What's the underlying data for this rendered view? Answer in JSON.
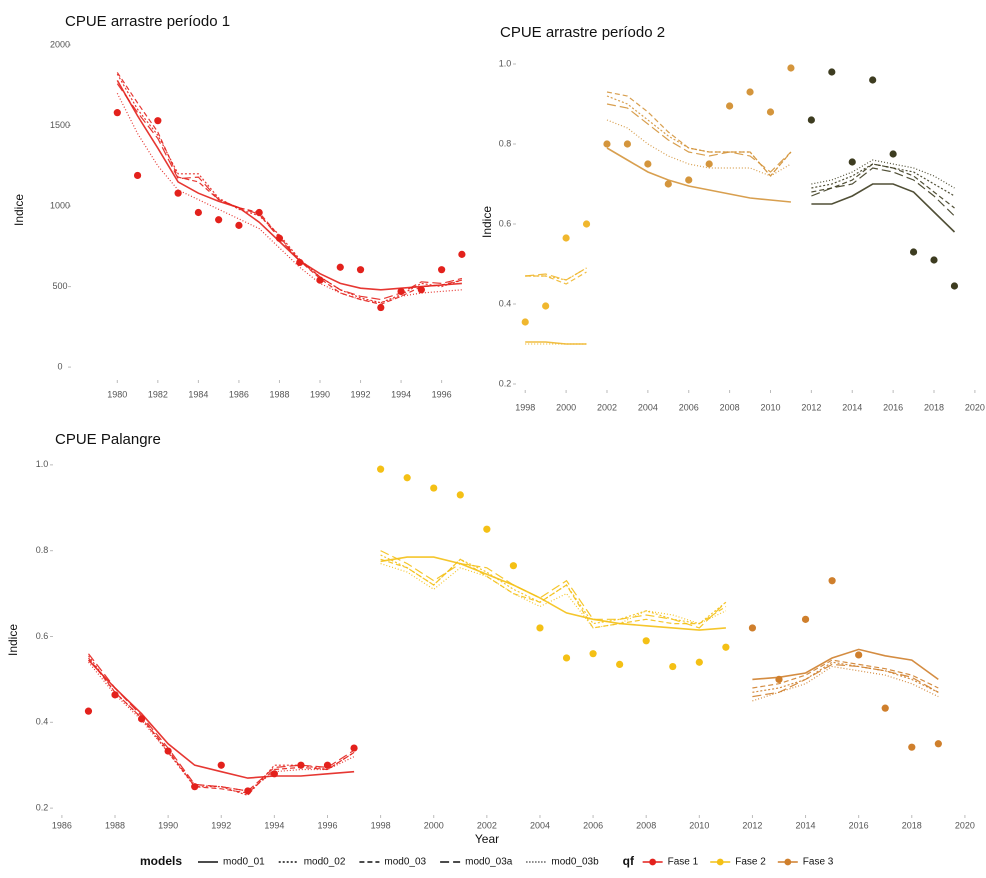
{
  "legend": {
    "models_title": "models",
    "models": [
      {
        "name": "mod0_01",
        "dash": "none"
      },
      {
        "name": "mod0_02",
        "dash": "2,2"
      },
      {
        "name": "mod0_03",
        "dash": "5,3"
      },
      {
        "name": "mod0_03a",
        "dash": "9,4"
      },
      {
        "name": "mod0_03b",
        "dash": "1,2"
      }
    ],
    "qf_title": "qf",
    "phases": [
      {
        "name": "Fase 1",
        "color": "#e3211c"
      },
      {
        "name": "Fase 2",
        "color": "#f4c015"
      },
      {
        "name": "Fase 3",
        "color": "#cf7f2c"
      }
    ]
  },
  "chart_data": [
    {
      "type": "line",
      "title": "CPUE arrastre período 1",
      "y_label": "Indice",
      "xlim": [
        1978.9,
        1997.4
      ],
      "ylim": [
        -80,
        2000
      ],
      "xticks": [
        1980,
        1982,
        1984,
        1986,
        1988,
        1990,
        1992,
        1994,
        1996
      ],
      "yticks": [
        0,
        500,
        1000,
        1500,
        2000
      ],
      "groups": [
        {
          "color": "#e3211c",
          "x": [
            1980,
            1981,
            1982,
            1983,
            1984,
            1985,
            1986,
            1987,
            1988,
            1989,
            1990,
            1991,
            1992,
            1993,
            1994,
            1995,
            1996,
            1997
          ],
          "points": [
            1580,
            1190,
            1530,
            1080,
            960,
            915,
            880,
            960,
            800,
            650,
            540,
            620,
            605,
            370,
            470,
            480,
            605,
            700
          ],
          "models": [
            [
              1780,
              1560,
              1360,
              1150,
              1080,
              1030,
              990,
              900,
              780,
              660,
              580,
              520,
              490,
              480,
              490,
              500,
              510,
              520
            ],
            [
              1820,
              1600,
              1440,
              1200,
              1200,
              1050,
              980,
              940,
              820,
              670,
              560,
              480,
              430,
              400,
              450,
              520,
              500,
              540
            ],
            [
              1830,
              1640,
              1460,
              1180,
              1150,
              1040,
              990,
              960,
              810,
              660,
              550,
              460,
              420,
              390,
              440,
              500,
              510,
              540
            ],
            [
              1760,
              1580,
              1420,
              1170,
              1180,
              1040,
              990,
              950,
              800,
              660,
              560,
              480,
              440,
              420,
              460,
              530,
              520,
              550
            ],
            [
              1700,
              1450,
              1250,
              1100,
              1040,
              980,
              920,
              860,
              740,
              620,
              520,
              460,
              420,
              400,
              440,
              460,
              470,
              480
            ]
          ]
        }
      ]
    },
    {
      "type": "line",
      "title": "CPUE arrastre período 2",
      "y_label": "Indice",
      "xlim": [
        1997.5,
        2020.25
      ],
      "ylim": [
        0.185,
        1.01
      ],
      "xticks": [
        1998,
        2000,
        2002,
        2004,
        2006,
        2008,
        2010,
        2012,
        2014,
        2016,
        2018,
        2020
      ],
      "yticks": [
        0.2,
        0.4,
        0.6,
        0.8,
        {
          "value": 1,
          "label": "1.0"
        }
      ],
      "groups": [
        {
          "color": "#f0b72e",
          "x": [
            1998,
            1999,
            2000,
            2001
          ],
          "points": [
            0.355,
            0.395,
            0.565,
            0.6
          ],
          "models": [
            [
              0.305,
              0.305,
              0.3,
              0.3
            ],
            [
              0.47,
              0.47,
              0.46,
              0.49
            ],
            [
              0.47,
              0.47,
              0.45,
              0.48
            ],
            [
              0.47,
              0.475,
              0.46,
              0.49
            ],
            [
              0.3,
              0.3,
              0.3,
              0.3
            ]
          ]
        },
        {
          "color": "#d4953c",
          "x": [
            2002,
            2003,
            2004,
            2005,
            2006,
            2007,
            2008,
            2009,
            2010,
            2011
          ],
          "points": [
            0.8,
            0.8,
            0.75,
            0.7,
            0.71,
            0.75,
            0.895,
            0.93,
            0.88,
            0.99
          ],
          "models": [
            [
              0.79,
              0.76,
              0.73,
              0.71,
              0.695,
              0.685,
              0.675,
              0.665,
              0.66,
              0.655
            ],
            [
              0.92,
              0.9,
              0.86,
              0.82,
              0.79,
              0.78,
              0.78,
              0.78,
              0.72,
              0.78
            ],
            [
              0.93,
              0.92,
              0.88,
              0.83,
              0.79,
              0.78,
              0.78,
              0.78,
              0.72,
              0.78
            ],
            [
              0.9,
              0.89,
              0.85,
              0.81,
              0.78,
              0.77,
              0.78,
              0.77,
              0.73,
              0.78
            ],
            [
              0.86,
              0.84,
              0.8,
              0.77,
              0.75,
              0.74,
              0.74,
              0.74,
              0.72,
              0.75
            ]
          ]
        },
        {
          "color": "#3d3c20",
          "x": [
            2012,
            2013,
            2014,
            2015,
            2016,
            2017,
            2018,
            2019
          ],
          "points": [
            0.86,
            0.98,
            0.755,
            0.96,
            0.775,
            0.53,
            0.51,
            0.445
          ],
          "models": [
            [
              0.65,
              0.65,
              0.67,
              0.7,
              0.7,
              0.68,
              0.63,
              0.58
            ],
            [
              0.69,
              0.7,
              0.72,
              0.75,
              0.74,
              0.73,
              0.7,
              0.67
            ],
            [
              0.68,
              0.69,
              0.71,
              0.75,
              0.74,
              0.72,
              0.68,
              0.64
            ],
            [
              0.67,
              0.69,
              0.7,
              0.74,
              0.73,
              0.71,
              0.67,
              0.62
            ],
            [
              0.7,
              0.71,
              0.73,
              0.76,
              0.75,
              0.74,
              0.72,
              0.69
            ]
          ]
        }
      ]
    },
    {
      "type": "line",
      "title": "CPUE Palangre",
      "x_label": "Year",
      "y_label": "Indice",
      "xlim": [
        1985.74,
        2020.38
      ],
      "ylim": [
        0.184,
        1.023
      ],
      "xticks": [
        1986,
        1988,
        1990,
        1992,
        1994,
        1996,
        1998,
        2000,
        2002,
        2004,
        2006,
        2008,
        2010,
        2012,
        2014,
        2016,
        2018,
        2020
      ],
      "yticks": [
        0.2,
        0.4,
        0.6,
        0.8,
        {
          "value": 1,
          "label": "1.0"
        }
      ],
      "groups": [
        {
          "color": "#e3211c",
          "x": [
            1987,
            1988,
            1989,
            1990,
            1991,
            1992,
            1993,
            1994,
            1995,
            1996,
            1997
          ],
          "points": [
            0.426,
            0.464,
            0.408,
            0.333,
            0.25,
            0.3,
            0.24,
            0.28,
            0.3,
            0.3,
            0.34
          ],
          "models": [
            [
              0.545,
              0.48,
              0.42,
              0.35,
              0.3,
              0.285,
              0.27,
              0.275,
              0.275,
              0.28,
              0.285
            ],
            [
              0.555,
              0.47,
              0.41,
              0.33,
              0.25,
              0.25,
              0.23,
              0.3,
              0.3,
              0.29,
              0.33
            ],
            [
              0.55,
              0.47,
              0.41,
              0.335,
              0.25,
              0.245,
              0.235,
              0.29,
              0.295,
              0.29,
              0.33
            ],
            [
              0.56,
              0.48,
              0.415,
              0.34,
              0.255,
              0.25,
              0.24,
              0.295,
              0.3,
              0.295,
              0.335
            ],
            [
              0.54,
              0.465,
              0.405,
              0.33,
              0.255,
              0.25,
              0.24,
              0.285,
              0.29,
              0.29,
              0.32
            ]
          ]
        },
        {
          "color": "#f4c015",
          "x": [
            1998,
            1999,
            2000,
            2001,
            2002,
            2003,
            2004,
            2005,
            2006,
            2007,
            2008,
            2009,
            2010,
            2011
          ],
          "points": [
            0.99,
            0.97,
            0.946,
            0.93,
            0.85,
            0.765,
            0.62,
            0.55,
            0.56,
            0.535,
            0.59,
            0.53,
            0.54,
            0.575
          ],
          "models": [
            [
              0.775,
              0.785,
              0.785,
              0.77,
              0.745,
              0.72,
              0.69,
              0.655,
              0.64,
              0.63,
              0.625,
              0.62,
              0.615,
              0.62
            ],
            [
              0.79,
              0.76,
              0.72,
              0.78,
              0.75,
              0.71,
              0.68,
              0.72,
              0.63,
              0.64,
              0.66,
              0.64,
              0.63,
              0.68
            ],
            [
              0.78,
              0.76,
              0.72,
              0.78,
              0.74,
              0.7,
              0.68,
              0.72,
              0.62,
              0.63,
              0.64,
              0.63,
              0.63,
              0.67
            ],
            [
              0.8,
              0.77,
              0.73,
              0.77,
              0.76,
              0.72,
              0.69,
              0.73,
              0.64,
              0.64,
              0.65,
              0.64,
              0.62,
              0.68
            ],
            [
              0.77,
              0.75,
              0.71,
              0.76,
              0.74,
              0.7,
              0.67,
              0.7,
              0.62,
              0.63,
              0.66,
              0.65,
              0.63,
              0.66
            ]
          ]
        },
        {
          "color": "#cf7f2c",
          "x": [
            2012,
            2013,
            2014,
            2015,
            2016,
            2017,
            2018,
            2019
          ],
          "points": [
            0.62,
            0.5,
            0.64,
            0.73,
            0.557,
            0.433,
            0.342,
            0.35
          ],
          "models": [
            [
              0.5,
              0.505,
              0.515,
              0.55,
              0.57,
              0.555,
              0.545,
              0.5
            ],
            [
              0.47,
              0.48,
              0.5,
              0.54,
              0.53,
              0.52,
              0.5,
              0.47
            ],
            [
              0.48,
              0.49,
              0.51,
              0.545,
              0.535,
              0.525,
              0.51,
              0.48
            ],
            [
              0.46,
              0.47,
              0.5,
              0.535,
              0.53,
              0.52,
              0.505,
              0.47
            ],
            [
              0.45,
              0.47,
              0.49,
              0.53,
              0.52,
              0.51,
              0.49,
              0.46
            ]
          ]
        }
      ]
    }
  ]
}
